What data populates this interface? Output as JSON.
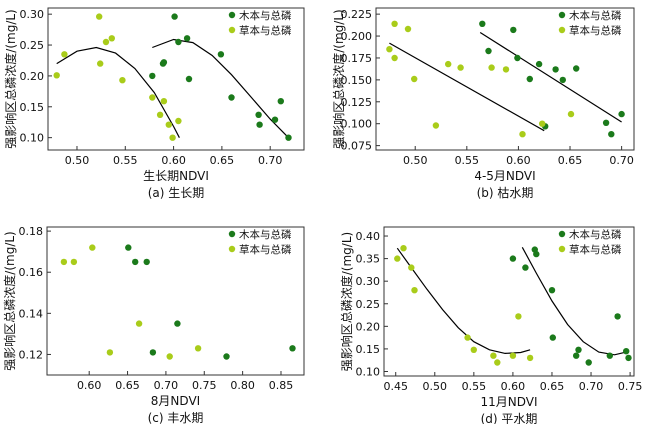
{
  "legend_labels": [
    "木本与总磷",
    "草本与总磷"
  ],
  "colors": {
    "woody": "#1b7a1b",
    "herb": "#a9cc1a",
    "fit": "#000000",
    "axis": "#333333"
  },
  "chart_data": [
    {
      "type": "scatter",
      "caption": "(a) 生长期",
      "xlabel": "生长期NDVI",
      "ylabel": "强影响区总磷浓度/(mg/L)",
      "xlim": [
        0.47,
        0.735
      ],
      "ylim": [
        0.08,
        0.31
      ],
      "xticks": [
        "0.50",
        "0.55",
        "0.60",
        "0.65",
        "0.70"
      ],
      "yticks": [
        "0.10",
        "0.15",
        "0.20",
        "0.25",
        "0.30"
      ],
      "legend_position": "top-right",
      "series": [
        {
          "name": "木本与总磷",
          "points": [
            [
              0.601,
              0.296
            ],
            [
              0.605,
              0.255
            ],
            [
              0.614,
              0.261
            ],
            [
              0.589,
              0.22
            ],
            [
              0.578,
              0.2
            ],
            [
              0.59,
              0.222
            ],
            [
              0.616,
              0.195
            ],
            [
              0.649,
              0.235
            ],
            [
              0.66,
              0.165
            ],
            [
              0.688,
              0.137
            ],
            [
              0.689,
              0.121
            ],
            [
              0.705,
              0.129
            ],
            [
              0.711,
              0.159
            ],
            [
              0.719,
              0.1
            ]
          ]
        },
        {
          "name": "草本与总磷",
          "points": [
            [
              0.479,
              0.201
            ],
            [
              0.487,
              0.235
            ],
            [
              0.523,
              0.296
            ],
            [
              0.524,
              0.22
            ],
            [
              0.53,
              0.255
            ],
            [
              0.536,
              0.261
            ],
            [
              0.547,
              0.193
            ],
            [
              0.578,
              0.165
            ],
            [
              0.586,
              0.137
            ],
            [
              0.59,
              0.159
            ],
            [
              0.595,
              0.121
            ],
            [
              0.599,
              0.1
            ],
            [
              0.605,
              0.127
            ]
          ]
        }
      ],
      "fits": [
        {
          "points": [
            [
              0.479,
              0.22
            ],
            [
              0.5,
              0.24
            ],
            [
              0.52,
              0.246
            ],
            [
              0.54,
              0.237
            ],
            [
              0.56,
              0.212
            ],
            [
              0.58,
              0.173
            ],
            [
              0.6,
              0.118
            ],
            [
              0.606,
              0.1
            ]
          ]
        },
        {
          "points": [
            [
              0.578,
              0.246
            ],
            [
              0.6,
              0.259
            ],
            [
              0.62,
              0.254
            ],
            [
              0.64,
              0.233
            ],
            [
              0.66,
              0.202
            ],
            [
              0.68,
              0.166
            ],
            [
              0.7,
              0.13
            ],
            [
              0.719,
              0.1
            ]
          ]
        }
      ]
    },
    {
      "type": "scatter",
      "caption": "(b) 枯水期",
      "xlabel": "4-5月NDVI",
      "ylabel": "强影响区总磷浓度/(mg/L)",
      "xlim": [
        0.462,
        0.712
      ],
      "ylim": [
        0.07,
        0.232
      ],
      "xticks": [
        "0.50",
        "0.55",
        "0.60",
        "0.65",
        "0.70"
      ],
      "yticks": [
        "0.075",
        "0.100",
        "0.125",
        "0.150",
        "0.175",
        "0.200",
        "0.225"
      ],
      "legend_position": "top-right",
      "series": [
        {
          "name": "木本与总磷",
          "points": [
            [
              0.565,
              0.214
            ],
            [
              0.595,
              0.207
            ],
            [
              0.571,
              0.183
            ],
            [
              0.599,
              0.175
            ],
            [
              0.611,
              0.151
            ],
            [
              0.62,
              0.168
            ],
            [
              0.626,
              0.097
            ],
            [
              0.636,
              0.162
            ],
            [
              0.643,
              0.15
            ],
            [
              0.656,
              0.163
            ],
            [
              0.685,
              0.101
            ],
            [
              0.69,
              0.088
            ],
            [
              0.7,
              0.111
            ]
          ]
        },
        {
          "name": "草本与总磷",
          "points": [
            [
              0.475,
              0.185
            ],
            [
              0.48,
              0.175
            ],
            [
              0.48,
              0.214
            ],
            [
              0.493,
              0.208
            ],
            [
              0.499,
              0.151
            ],
            [
              0.52,
              0.098
            ],
            [
              0.532,
              0.168
            ],
            [
              0.544,
              0.164
            ],
            [
              0.574,
              0.164
            ],
            [
              0.588,
              0.162
            ],
            [
              0.604,
              0.088
            ],
            [
              0.623,
              0.1
            ],
            [
              0.651,
              0.111
            ]
          ]
        }
      ],
      "fits": [
        {
          "points": [
            [
              0.475,
              0.192
            ],
            [
              0.625,
              0.092
            ]
          ]
        },
        {
          "points": [
            [
              0.563,
              0.204
            ],
            [
              0.7,
              0.102
            ]
          ]
        }
      ]
    },
    {
      "type": "scatter",
      "caption": "(c) 丰水期",
      "xlabel": "8月NDVI",
      "ylabel": "强影响区总磷浓度/(mg/L)",
      "xlim": [
        0.545,
        0.88
      ],
      "ylim": [
        0.11,
        0.182
      ],
      "xticks": [
        "0.60",
        "0.65",
        "0.70",
        "0.75",
        "0.80",
        "0.85"
      ],
      "yticks": [
        "0.12",
        "0.14",
        "0.16",
        "0.18"
      ],
      "legend_position": "top-right",
      "series": [
        {
          "name": "木本与总磷",
          "points": [
            [
              0.651,
              0.172
            ],
            [
              0.66,
              0.165
            ],
            [
              0.675,
              0.165
            ],
            [
              0.683,
              0.121
            ],
            [
              0.715,
              0.135
            ],
            [
              0.779,
              0.119
            ],
            [
              0.865,
              0.123
            ]
          ]
        },
        {
          "name": "草本与总磷",
          "points": [
            [
              0.567,
              0.165
            ],
            [
              0.58,
              0.165
            ],
            [
              0.604,
              0.172
            ],
            [
              0.627,
              0.121
            ],
            [
              0.665,
              0.135
            ],
            [
              0.705,
              0.119
            ],
            [
              0.742,
              0.123
            ]
          ]
        }
      ],
      "fits": []
    },
    {
      "type": "scatter",
      "caption": "(d) 平水期",
      "xlabel": "11月NDVI",
      "ylabel": "强影响区总磷浓度/(mg/L)",
      "xlim": [
        0.435,
        0.755
      ],
      "ylim": [
        0.09,
        0.42
      ],
      "xticks": [
        "0.45",
        "0.50",
        "0.55",
        "0.60",
        "0.65",
        "0.70",
        "0.75"
      ],
      "yticks": [
        "0.10",
        "0.15",
        "0.20",
        "0.25",
        "0.30",
        "0.35",
        "0.40"
      ],
      "legend_position": "top-right",
      "series": [
        {
          "name": "木本与总磷",
          "points": [
            [
              0.6,
              0.35
            ],
            [
              0.616,
              0.33
            ],
            [
              0.628,
              0.37
            ],
            [
              0.63,
              0.36
            ],
            [
              0.65,
              0.28
            ],
            [
              0.651,
              0.175
            ],
            [
              0.681,
              0.135
            ],
            [
              0.684,
              0.148
            ],
            [
              0.697,
              0.12
            ],
            [
              0.724,
              0.135
            ],
            [
              0.734,
              0.222
            ],
            [
              0.745,
              0.145
            ],
            [
              0.748,
              0.13
            ]
          ]
        },
        {
          "name": "草本与总磷",
          "points": [
            [
              0.452,
              0.35
            ],
            [
              0.46,
              0.373
            ],
            [
              0.47,
              0.33
            ],
            [
              0.474,
              0.28
            ],
            [
              0.542,
              0.175
            ],
            [
              0.55,
              0.148
            ],
            [
              0.575,
              0.135
            ],
            [
              0.58,
              0.12
            ],
            [
              0.6,
              0.135
            ],
            [
              0.607,
              0.222
            ],
            [
              0.622,
              0.13
            ]
          ]
        }
      ],
      "fits": [
        {
          "points": [
            [
              0.452,
              0.373
            ],
            [
              0.47,
              0.33
            ],
            [
              0.49,
              0.282
            ],
            [
              0.51,
              0.237
            ],
            [
              0.53,
              0.197
            ],
            [
              0.55,
              0.166
            ],
            [
              0.57,
              0.148
            ],
            [
              0.59,
              0.14
            ],
            [
              0.61,
              0.142
            ],
            [
              0.622,
              0.148
            ]
          ]
        },
        {
          "points": [
            [
              0.612,
              0.375
            ],
            [
              0.63,
              0.318
            ],
            [
              0.65,
              0.256
            ],
            [
              0.67,
              0.204
            ],
            [
              0.69,
              0.166
            ],
            [
              0.71,
              0.143
            ],
            [
              0.73,
              0.137
            ],
            [
              0.745,
              0.143
            ]
          ]
        }
      ]
    }
  ]
}
